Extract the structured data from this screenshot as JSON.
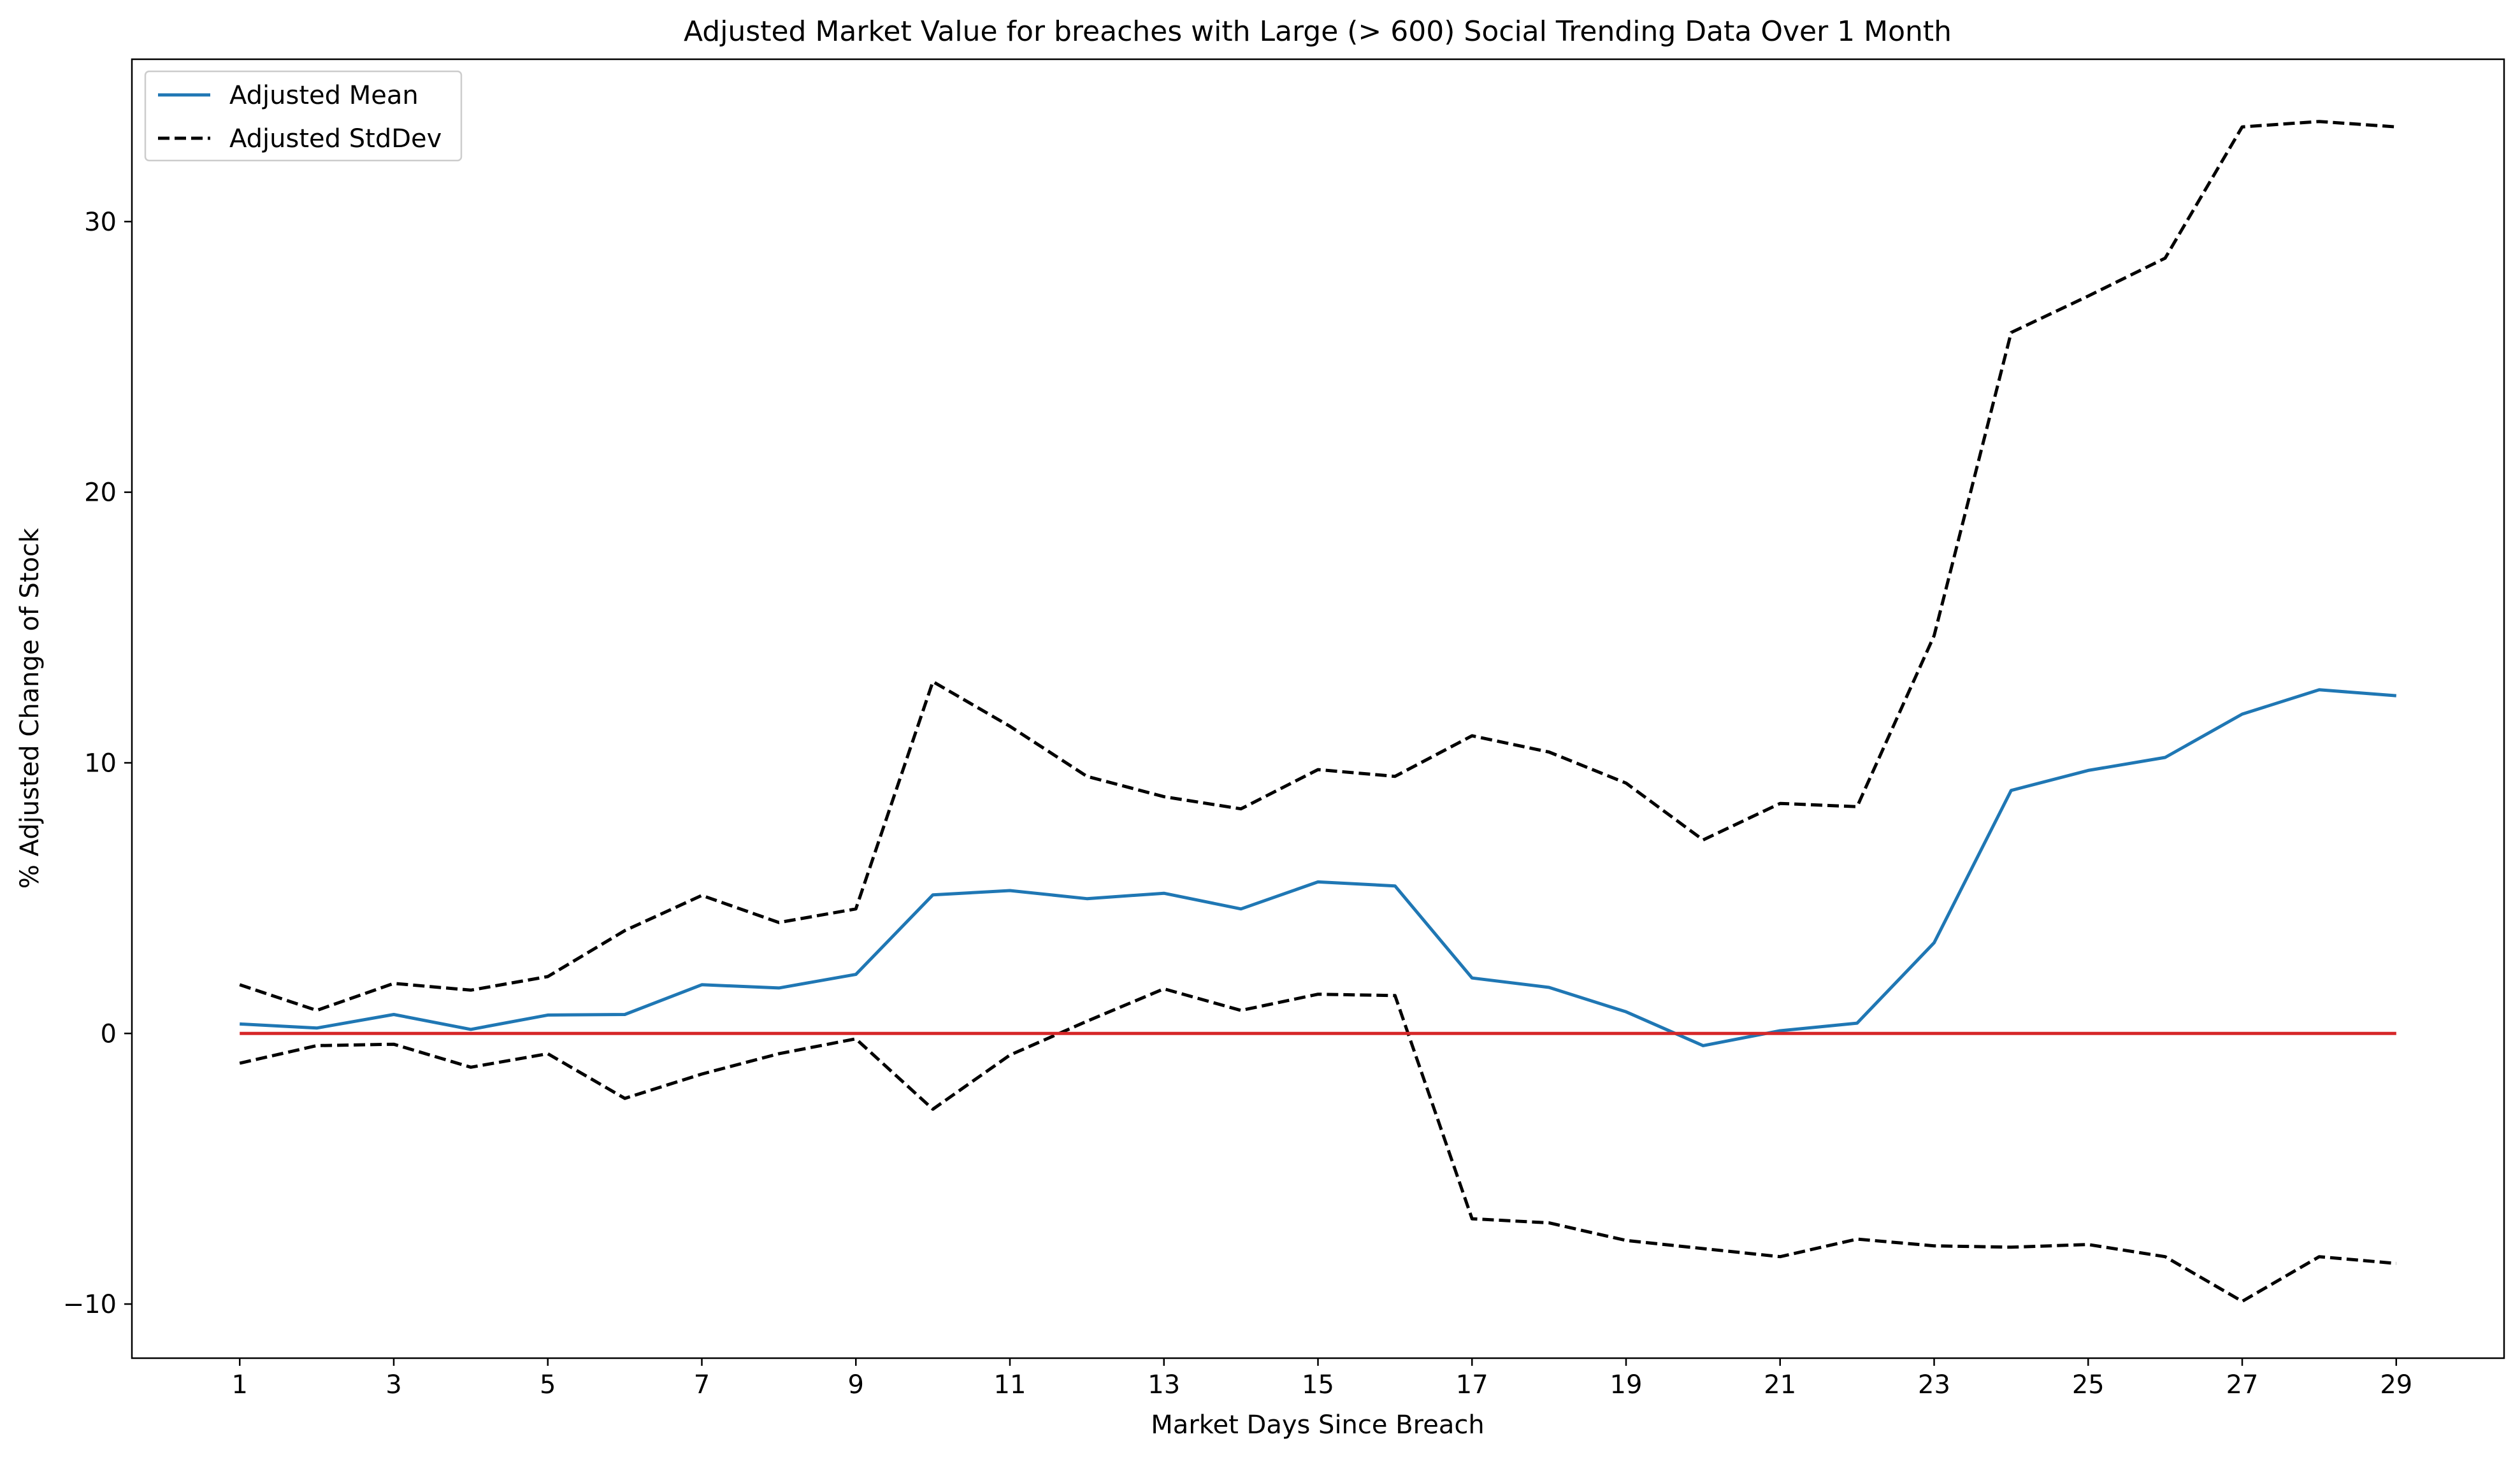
{
  "chart_data": {
    "type": "line",
    "title": "Adjusted Market Value for breaches with Large (> 600) Social Trending Data Over 1 Month",
    "xlabel": "Market Days Since Breach",
    "ylabel": "% Adjusted Change of Stock",
    "x": [
      1,
      2,
      3,
      4,
      5,
      6,
      7,
      8,
      9,
      10,
      11,
      12,
      13,
      14,
      15,
      16,
      17,
      18,
      19,
      20,
      21,
      22,
      23,
      24,
      25,
      26,
      27,
      28,
      29
    ],
    "xlim": [
      -0.4,
      30.4
    ],
    "ylim": [
      -12,
      36
    ],
    "xticks": [
      1,
      3,
      5,
      7,
      9,
      11,
      13,
      15,
      17,
      19,
      21,
      23,
      25,
      27,
      29
    ],
    "yticks": [
      -10,
      0,
      10,
      20,
      30
    ],
    "grid": false,
    "legend_position": "upper left",
    "series": [
      {
        "name": "Adjusted Mean",
        "style": "solid",
        "color": "#1f77b4",
        "in_legend": true,
        "values": [
          0.35,
          0.2,
          0.7,
          0.15,
          0.68,
          0.7,
          1.8,
          1.68,
          2.18,
          5.12,
          5.28,
          4.98,
          5.18,
          4.6,
          5.6,
          5.45,
          2.05,
          1.7,
          0.8,
          -0.45,
          0.1,
          0.38,
          3.35,
          8.98,
          9.72,
          10.2,
          11.8,
          12.7,
          12.48
        ]
      },
      {
        "name": "Adjusted StdDev",
        "style": "dashed",
        "color": "#000000",
        "in_legend": true,
        "values": [
          1.8,
          0.85,
          1.85,
          1.6,
          2.1,
          3.8,
          5.1,
          4.1,
          4.6,
          13.0,
          11.35,
          9.5,
          8.75,
          8.3,
          9.75,
          9.5,
          11.0,
          10.4,
          9.25,
          7.15,
          8.5,
          8.38,
          14.7,
          25.9,
          27.25,
          28.65,
          33.5,
          33.7,
          33.5
        ]
      },
      {
        "name": "",
        "style": "dashed",
        "color": "#000000",
        "in_legend": false,
        "values": [
          -1.1,
          -0.45,
          -0.4,
          -1.25,
          -0.75,
          -2.4,
          -1.5,
          -0.75,
          -0.2,
          -2.8,
          -0.8,
          0.45,
          1.65,
          0.85,
          1.45,
          1.4,
          -6.85,
          -7.0,
          -7.65,
          -7.95,
          -8.25,
          -7.6,
          -7.85,
          -7.9,
          -7.8,
          -8.25,
          -9.9,
          -8.25,
          -8.5
        ]
      },
      {
        "name": "",
        "style": "solid",
        "color": "#d62728",
        "in_legend": false,
        "values": [
          0,
          0,
          0,
          0,
          0,
          0,
          0,
          0,
          0,
          0,
          0,
          0,
          0,
          0,
          0,
          0,
          0,
          0,
          0,
          0,
          0,
          0,
          0,
          0,
          0,
          0,
          0,
          0,
          0
        ]
      }
    ]
  }
}
